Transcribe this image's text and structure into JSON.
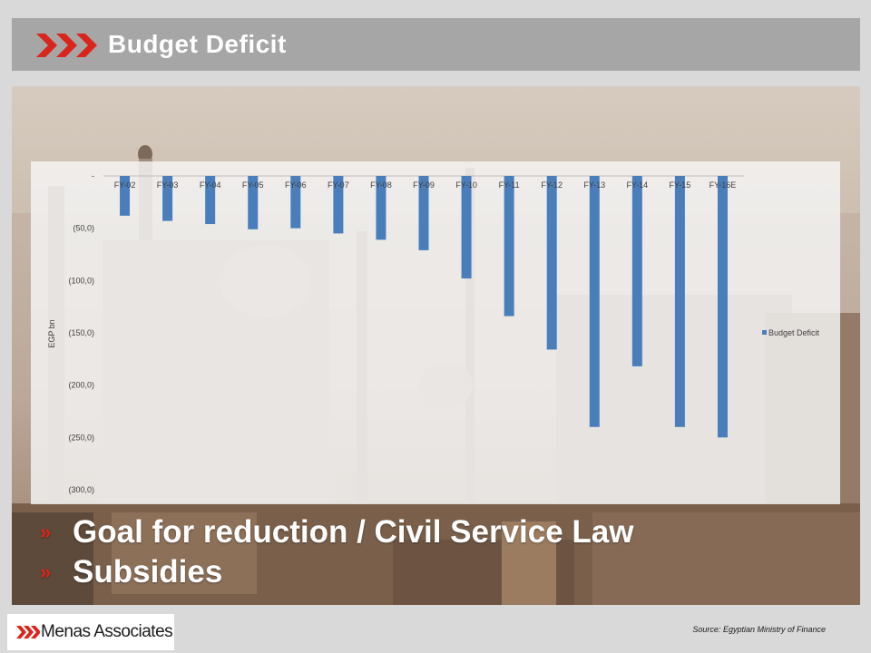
{
  "slide": {
    "title": "Budget Deficit",
    "bullets": [
      "Goal for reduction / Civil Service Law",
      "Subsidies"
    ],
    "source": "Source: Egyptian Ministry of Finance",
    "logo_text": "Menas Associates"
  },
  "colors": {
    "accent_red": "#d9251c",
    "bar_blue": "#4a7ebb",
    "title_bar": "#a6a6a6"
  },
  "icons": {
    "title_chevrons": "triple-chevron-icon",
    "bullet_marker": "double-chevron-icon"
  },
  "chart_data": {
    "type": "bar",
    "title": "",
    "xlabel": "",
    "ylabel": "EGP bn",
    "categories": [
      "FY-02",
      "FY-03",
      "FY-04",
      "FY-05",
      "FY-06",
      "FY-07",
      "FY-08",
      "FY-09",
      "FY-10",
      "FY-11",
      "FY-12",
      "FY-13",
      "FY-14",
      "FY-15",
      "FY-16E"
    ],
    "series": [
      {
        "name": "Budget Deficit",
        "values": [
          -38,
          -43,
          -46,
          -51,
          -50,
          -55,
          -61,
          -71,
          -98,
          -134,
          -166,
          -240,
          -182,
          -240,
          -250
        ]
      }
    ],
    "ylim": [
      -300,
      0
    ],
    "yticks": [
      0,
      -50,
      -100,
      -150,
      -200,
      -250,
      -300
    ],
    "ytick_labels": [
      "-",
      "(50,0)",
      "(100,0)",
      "(150,0)",
      "(200,0)",
      "(250,0)",
      "(300,0)"
    ],
    "legend": "right",
    "grid": false
  }
}
